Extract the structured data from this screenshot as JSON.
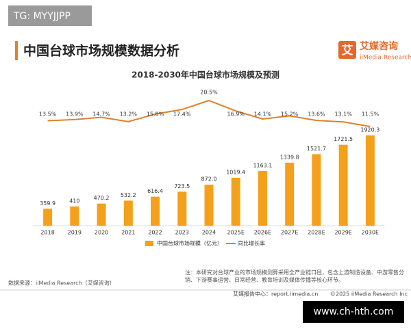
{
  "watermark": "TG: MYYJJPP",
  "header": {
    "title": "中国台球市场规模数据分析",
    "logo_mark": "艾",
    "logo_name": "艾媒咨询",
    "logo_sub": "iiMedia Research"
  },
  "chart_data": {
    "type": "bar-line",
    "title": "2018-2030年中国台球市场规模及预测",
    "categories": [
      "2018",
      "2019",
      "2020",
      "2021",
      "2022",
      "2023",
      "2024",
      "2025E",
      "2026E",
      "2027E",
      "2028E",
      "2029E",
      "2030E"
    ],
    "series": [
      {
        "name": "中国台球市场规模（亿元）",
        "color": "#f5a01a",
        "type": "bar",
        "values": [
          359.9,
          410,
          470.2,
          532.2,
          616.4,
          723.5,
          872,
          1019.4,
          1163.1,
          1339.8,
          1521.7,
          1721.5,
          1920.3
        ],
        "value_labels": [
          "359.9",
          "410",
          "470.2",
          "532.2",
          "616.4",
          "723.5",
          "872.0",
          "1019.4",
          "1163.1",
          "1339.8",
          "1521.7",
          "1721.5",
          "1920.3"
        ]
      },
      {
        "name": "同比增长率",
        "color": "#e0812a",
        "type": "line",
        "values": [
          13.5,
          13.9,
          14.7,
          13.2,
          15.8,
          17.4,
          20.5,
          16.9,
          14.1,
          15.2,
          13.6,
          13.1,
          11.5
        ],
        "value_labels": [
          "13.5%",
          "13.9%",
          "14.7%",
          "13.2%",
          "15.8%",
          "17.4%",
          "20.5%",
          "16.9%",
          "14.1%",
          "15.2%",
          "13.6%",
          "13.1%",
          "11.5%"
        ]
      }
    ],
    "note": "注：本研究对台球产业的市场规模测算采用全产业链口径，包含上游制造设备、中游零售分销、下游赛事运营、日常经营、教育培训及媒体传播等核心环节。",
    "source": "数据来源：iiMedia Research（艾媒咨询）"
  },
  "footer": {
    "center": "艾媒报告中心：report.iimedia.cn",
    "copyright": "©2025  iiMedia Research  Inc",
    "site": "www.ch-hth.com"
  }
}
